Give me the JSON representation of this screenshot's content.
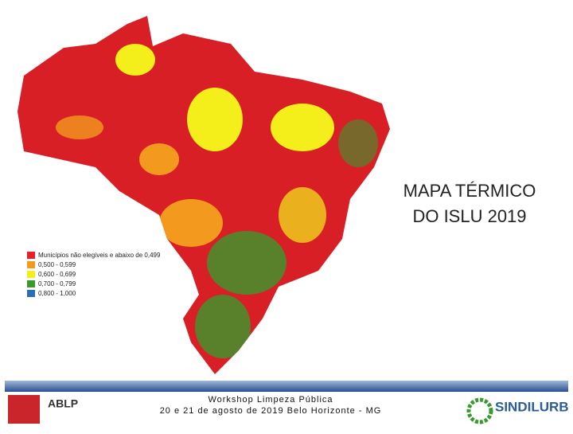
{
  "title_lines": [
    "MAPA TÉRMICO",
    "DO ISLU 2019"
  ],
  "legend": [
    {
      "label": "Municípios não elegíveis e abaixo de 0,499",
      "color": "#e8202a"
    },
    {
      "label": "0,500 - 0,599",
      "color": "#f39a1e"
    },
    {
      "label": "0,600 - 0,699",
      "color": "#f4ee1a"
    },
    {
      "label": "0,700 - 0,799",
      "color": "#3a9a2e"
    },
    {
      "label": "0,800 - 1,000",
      "color": "#2a6fb5"
    }
  ],
  "footer": {
    "left_logo": "ABLP",
    "lines": [
      "Workshop Limpeza Pública",
      "20 e 21 de agosto de 2019 Belo Horizonte - MG"
    ],
    "right_logo": "SINDILURB"
  }
}
